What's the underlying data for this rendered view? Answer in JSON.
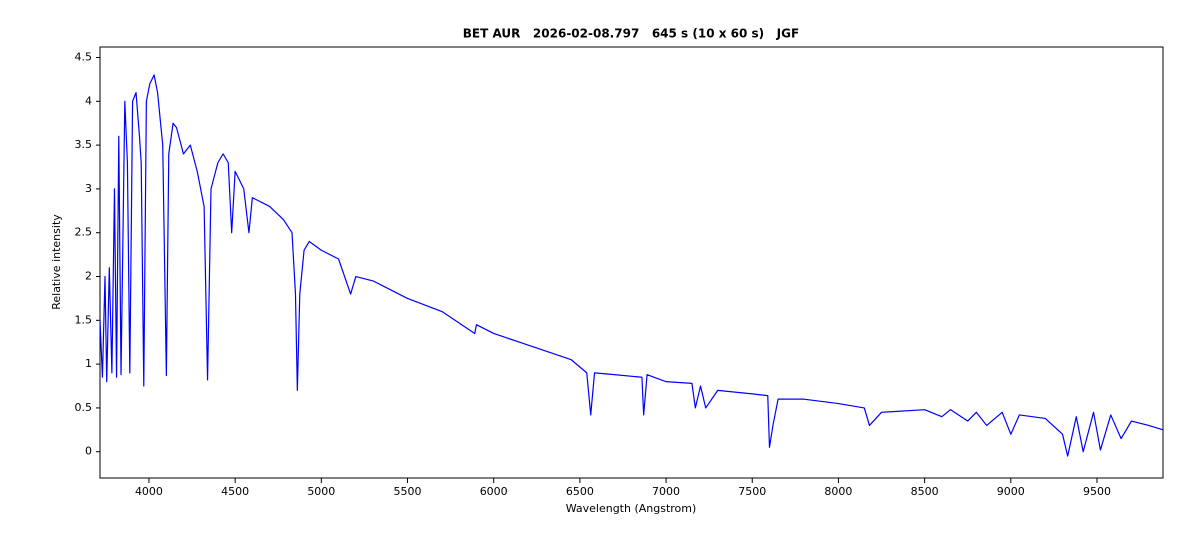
{
  "chart_data": {
    "type": "line",
    "title": "BET AUR   2026-02-08.797   645 s (10 x 60 s)   JGF",
    "x_label": "Wavelength (Angstrom)",
    "y_label": "Relative intensity",
    "xlim": [
      3716,
      9883
    ],
    "ylim": [
      -0.3,
      4.62
    ],
    "xticks": [
      4000,
      4500,
      5000,
      5500,
      6000,
      6500,
      7000,
      7500,
      8000,
      8500,
      9000,
      9500
    ],
    "yticks": [
      0,
      0.5,
      1,
      1.5,
      2,
      2.5,
      3,
      3.5,
      4,
      4.5
    ],
    "x": [
      3716,
      3730,
      3745,
      3755,
      3770,
      3785,
      3800,
      3812,
      3825,
      3838,
      3860,
      3875,
      3889,
      3905,
      3925,
      3945,
      3955,
      3970,
      3985,
      4005,
      4030,
      4050,
      4080,
      4101,
      4115,
      4140,
      4160,
      4200,
      4240,
      4280,
      4320,
      4340,
      4360,
      4400,
      4430,
      4460,
      4480,
      4500,
      4550,
      4580,
      4600,
      4700,
      4780,
      4830,
      4850,
      4861,
      4875,
      4900,
      4930,
      5000,
      5100,
      5170,
      5200,
      5300,
      5500,
      5700,
      5890,
      5900,
      6000,
      6150,
      6300,
      6450,
      6540,
      6563,
      6585,
      6700,
      6860,
      6870,
      6890,
      7000,
      7150,
      7170,
      7200,
      7230,
      7300,
      7500,
      7590,
      7600,
      7620,
      7650,
      7800,
      8000,
      8150,
      8180,
      8250,
      8500,
      8600,
      8650,
      8750,
      8800,
      8860,
      8950,
      9000,
      9050,
      9200,
      9300,
      9330,
      9380,
      9420,
      9480,
      9520,
      9580,
      9640,
      9700,
      9800,
      9883
    ],
    "series": [
      {
        "name": "BET AUR",
        "color": "#0000ff",
        "values": [
          1.5,
          0.85,
          2.0,
          0.8,
          2.1,
          0.9,
          3.0,
          0.85,
          3.6,
          0.88,
          4.0,
          3.3,
          0.9,
          4.0,
          4.1,
          3.6,
          3.3,
          0.75,
          4.0,
          4.2,
          4.3,
          4.1,
          3.5,
          0.87,
          3.4,
          3.75,
          3.7,
          3.4,
          3.5,
          3.2,
          2.8,
          0.82,
          3.0,
          3.3,
          3.4,
          3.3,
          2.5,
          3.2,
          3.0,
          2.5,
          2.9,
          2.8,
          2.65,
          2.5,
          1.8,
          0.7,
          1.8,
          2.3,
          2.4,
          2.3,
          2.2,
          1.8,
          2.0,
          1.95,
          1.75,
          1.6,
          1.35,
          1.45,
          1.35,
          1.25,
          1.15,
          1.05,
          0.9,
          0.42,
          0.9,
          0.88,
          0.85,
          0.42,
          0.88,
          0.8,
          0.78,
          0.5,
          0.75,
          0.5,
          0.7,
          0.66,
          0.64,
          0.05,
          0.3,
          0.6,
          0.6,
          0.55,
          0.5,
          0.3,
          0.45,
          0.48,
          0.4,
          0.48,
          0.35,
          0.45,
          0.3,
          0.45,
          0.2,
          0.42,
          0.38,
          0.2,
          -0.05,
          0.4,
          0.0,
          0.45,
          0.02,
          0.42,
          0.15,
          0.35,
          0.3,
          0.25
        ]
      }
    ]
  }
}
